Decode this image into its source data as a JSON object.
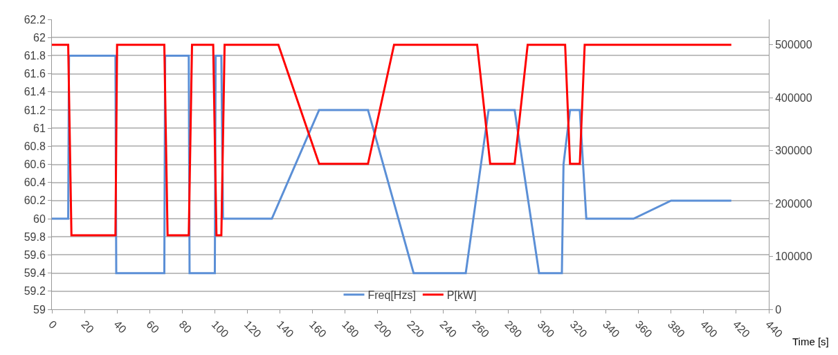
{
  "chart_data": {
    "type": "line",
    "xlabel": "Time [s]",
    "xlim": [
      0,
      440
    ],
    "xticks": [
      0,
      20,
      40,
      60,
      80,
      100,
      120,
      140,
      160,
      180,
      200,
      220,
      240,
      260,
      280,
      300,
      320,
      340,
      360,
      380,
      400,
      420,
      440
    ],
    "ylim": [
      59,
      62.2
    ],
    "yticks": [
      59,
      59.2,
      59.4,
      59.6,
      59.8,
      60,
      60.2,
      60.4,
      60.6,
      60.8,
      61,
      61.2,
      61.4,
      61.6,
      61.8,
      62,
      62.2
    ],
    "y2lim": [
      0,
      548000
    ],
    "y2ticks": [
      0,
      100000,
      200000,
      300000,
      400000,
      500000
    ],
    "grid": "y",
    "legend": "bottom",
    "marker": "none",
    "line_style": "solid",
    "series": [
      {
        "name": "Freq[Hzs]",
        "color": "#5b8fd6",
        "x": [
          0,
          10,
          10.5,
          39,
          39.5,
          69,
          69.5,
          84,
          84.5,
          100,
          100.5,
          104,
          105,
          135,
          164,
          194,
          222,
          254,
          268,
          284,
          299,
          313,
          314,
          318,
          324,
          328,
          357,
          380,
          417
        ],
        "values": [
          60,
          60,
          61.8,
          61.8,
          59.4,
          59.4,
          61.8,
          61.8,
          59.4,
          59.4,
          61.8,
          61.8,
          60,
          60,
          61.2,
          61.2,
          59.4,
          59.4,
          61.2,
          61.2,
          59.4,
          59.4,
          60.6,
          61.2,
          61.2,
          60,
          60,
          60.2,
          60.2
        ]
      },
      {
        "name": "P[kW]",
        "color": "#ff0000",
        "axis": "y2",
        "x": [
          0,
          10,
          12,
          39,
          40,
          69,
          71,
          84,
          86,
          99,
          101,
          104,
          106,
          139,
          164,
          194,
          210,
          261,
          269,
          284,
          292,
          315,
          318,
          324,
          327,
          417
        ],
        "values": [
          500000,
          500000,
          140000,
          140000,
          500000,
          500000,
          140000,
          140000,
          500000,
          500000,
          140000,
          140000,
          500000,
          500000,
          275000,
          275000,
          500000,
          500000,
          275000,
          275000,
          500000,
          500000,
          275000,
          275000,
          500000,
          500000
        ]
      }
    ]
  }
}
